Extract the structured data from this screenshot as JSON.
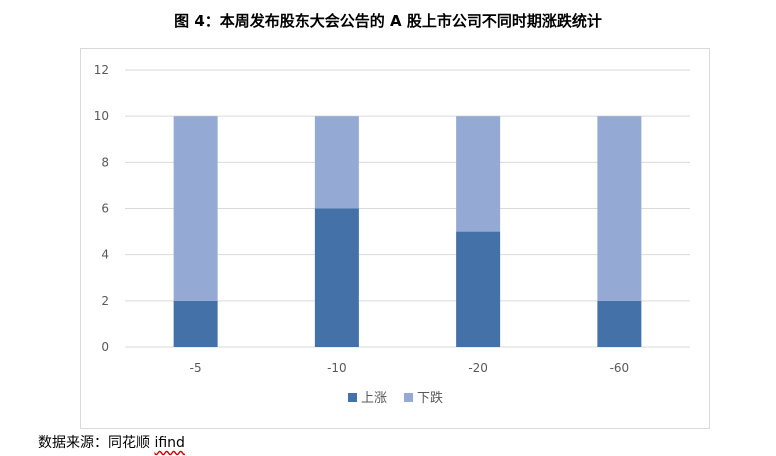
{
  "figure_title": "图 4：本周发布股东大会公告的 A 股上市公司不同时期涨跌统计",
  "source": {
    "label": "数据来源：同花顺 ",
    "tool": "ifind"
  },
  "colors": {
    "up": "#4472a8",
    "down": "#94aad4",
    "grid": "#d9d9d9",
    "axis_text": "#595959"
  },
  "chart_data": {
    "type": "bar",
    "stacked": true,
    "categories": [
      "-5",
      "-10",
      "-20",
      "-60"
    ],
    "series": [
      {
        "name": "上涨",
        "values": [
          2,
          6,
          5,
          2
        ]
      },
      {
        "name": "下跌",
        "values": [
          8,
          4,
          5,
          8
        ]
      }
    ],
    "title": "",
    "xlabel": "",
    "ylabel": "",
    "ylim": [
      0,
      12
    ],
    "yticks": [
      "0",
      "2",
      "4",
      "6",
      "8",
      "10",
      "12"
    ],
    "grid": true,
    "legend": "bottom"
  }
}
